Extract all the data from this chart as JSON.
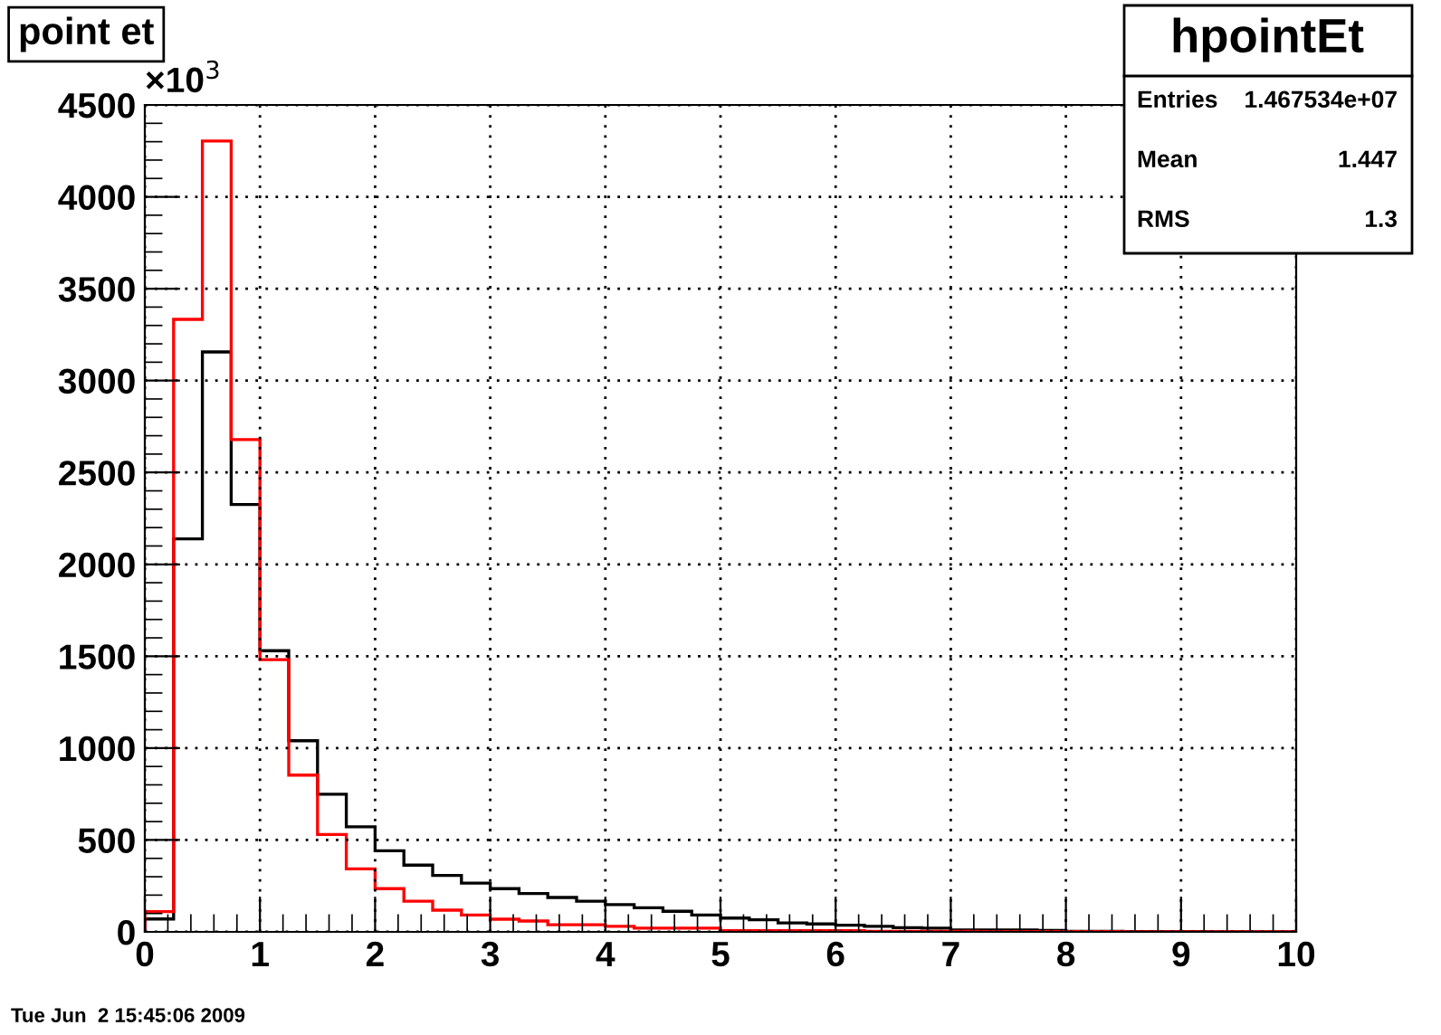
{
  "chart_data": {
    "type": "histogram",
    "title": "point et",
    "bins": [
      0,
      0.25,
      0.5,
      0.75,
      1,
      1.25,
      1.5,
      1.75,
      2,
      2.25,
      2.5,
      2.75,
      3,
      3.25,
      3.5,
      3.75,
      4,
      4.25,
      4.5,
      4.75,
      5,
      5.25,
      5.5,
      5.75,
      6,
      6.25,
      6.5,
      6.75,
      7,
      7.25,
      7.5,
      7.75,
      8,
      8.25,
      8.5,
      8.75,
      9,
      9.25,
      9.5,
      9.75,
      10
    ],
    "series": [
      {
        "color": "#000000",
        "values": [
          70,
          2139,
          3156,
          2326,
          1530,
          1040,
          749,
          572,
          441,
          363,
          307,
          265,
          235,
          209,
          187,
          167,
          148,
          131,
          112,
          92,
          75,
          66,
          49,
          43,
          36,
          30,
          23,
          20,
          10,
          10,
          10,
          8,
          3,
          3,
          2,
          2,
          2,
          1,
          1,
          1
        ]
      },
      {
        "color": "#ff0000",
        "values": [
          110,
          3333,
          4304,
          2679,
          1481,
          853,
          530,
          343,
          235,
          167,
          118,
          92,
          69,
          59,
          39,
          39,
          30,
          20,
          20,
          20,
          7,
          7,
          7,
          7,
          7,
          3,
          3,
          3,
          3,
          2,
          2,
          2,
          2,
          2,
          1,
          1,
          1,
          1,
          1,
          1
        ]
      }
    ],
    "xlim": [
      0,
      10
    ],
    "xticks": [
      0,
      1,
      2,
      3,
      4,
      5,
      6,
      7,
      8,
      9,
      10
    ],
    "ylim": [
      0,
      4500
    ],
    "yticks": [
      0,
      500,
      1000,
      1500,
      2000,
      2500,
      3000,
      3500,
      4000,
      4500
    ],
    "grid": true,
    "annotations": [
      "×10$^{3}$",
      "hpointEt",
      "Entries",
      "1.467534e+07",
      "Mean",
      "1.447",
      "RMS",
      "1.3",
      "Tue Jun  2 15:45:06 2009"
    ]
  }
}
